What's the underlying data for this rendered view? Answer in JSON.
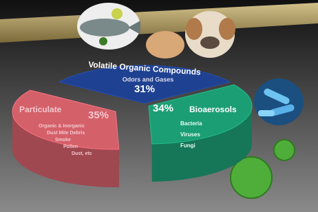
{
  "chart_data": {
    "type": "pie",
    "categories": [
      "Volatile Organic Compounds",
      "Bioaerosols",
      "Particulate"
    ],
    "values": [
      31,
      34,
      35
    ],
    "value_labels": [
      "31%",
      "34%",
      "35%"
    ],
    "details": [
      [
        "Odors and Gases"
      ],
      [
        "Bacteria",
        "Viruses",
        "Fungi"
      ],
      [
        "Organic & Inorganic",
        "Dust Mite Debris",
        "Smoke",
        "Pollen",
        "Dust, etc"
      ]
    ],
    "colors": [
      "#1f4191",
      "#1c9e74",
      "#d4606a"
    ]
  }
}
